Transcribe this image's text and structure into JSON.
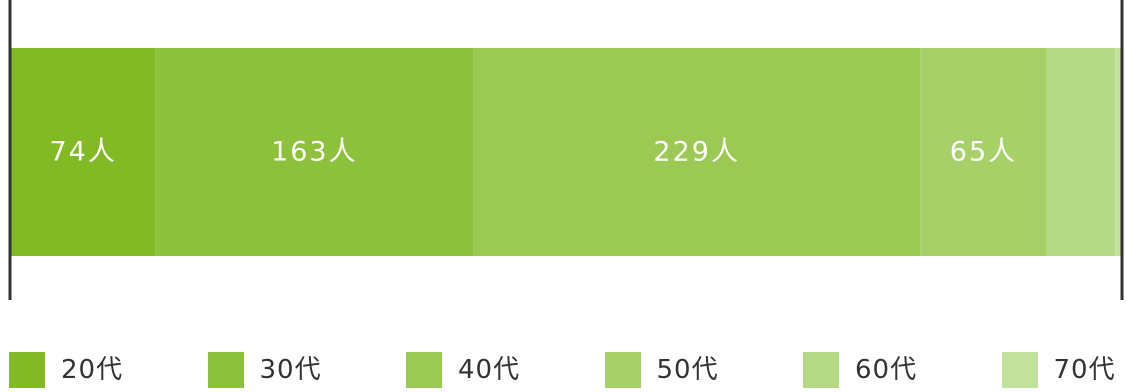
{
  "chart_data": {
    "type": "bar",
    "orientation": "horizontal-stacked-100",
    "unit": "人",
    "series": [
      {
        "name": "20代",
        "value": 74,
        "label": "74人",
        "color": "#82ba26"
      },
      {
        "name": "30代",
        "value": 163,
        "label": "163人",
        "color": "#8dc03b"
      },
      {
        "name": "40代",
        "value": 229,
        "label": "229人",
        "color": "#9bc953"
      },
      {
        "name": "50代",
        "value": 65,
        "label": "65人",
        "color": "#a8d069"
      },
      {
        "name": "60代",
        "value": 35,
        "label": "",
        "color": "#b5d985"
      },
      {
        "name": "70代",
        "value": 3,
        "label": "",
        "color": "#c2e19a"
      }
    ],
    "legend": {
      "position": "bottom"
    },
    "grid": false,
    "axis_color": "#333333",
    "label_color": "#ffffff"
  }
}
